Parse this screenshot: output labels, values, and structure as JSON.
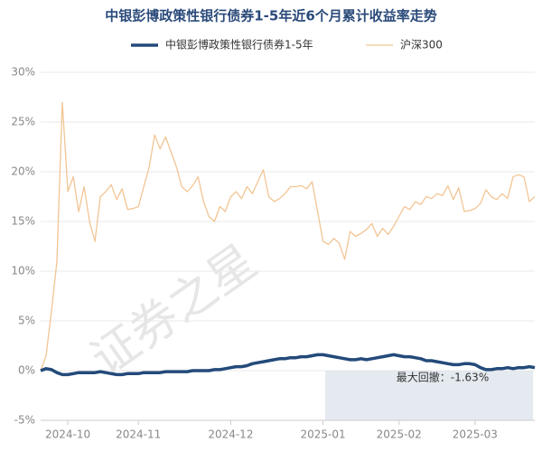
{
  "chart_data": {
    "type": "line",
    "title": "中银彭博政策性银行债券1-5年近6个月累计收益率走势",
    "watermark": "证券之星",
    "annotation": "最大回撤：-1.63%",
    "categories": [
      null,
      null,
      null,
      null,
      null,
      "2024-10",
      null,
      null,
      null,
      null,
      null,
      null,
      null,
      null,
      null,
      null,
      null,
      null,
      "2024-11",
      null,
      null,
      null,
      null,
      null,
      null,
      null,
      null,
      null,
      null,
      null,
      null,
      null,
      null,
      null,
      null,
      "2024-12",
      null,
      null,
      null,
      null,
      null,
      null,
      null,
      null,
      null,
      null,
      null,
      null,
      null,
      null,
      null,
      null,
      "2025-01",
      null,
      null,
      null,
      null,
      null,
      null,
      null,
      null,
      null,
      null,
      null,
      null,
      null,
      "2025-02",
      null,
      null,
      null,
      null,
      null,
      null,
      null,
      null,
      null,
      null,
      null,
      null,
      null,
      "2025-03",
      null,
      null,
      null,
      null,
      null,
      null,
      null,
      null,
      null,
      null,
      null
    ],
    "series": [
      {
        "name": "中银彭博政策性银行债券1-5年",
        "color": "#234a7a",
        "width": 3.5,
        "values": [
          0,
          0.2,
          0.1,
          -0.2,
          -0.4,
          -0.4,
          -0.3,
          -0.2,
          -0.2,
          -0.2,
          -0.2,
          -0.1,
          -0.2,
          -0.3,
          -0.4,
          -0.4,
          -0.3,
          -0.3,
          -0.3,
          -0.2,
          -0.2,
          -0.2,
          -0.2,
          -0.1,
          -0.1,
          -0.1,
          -0.1,
          -0.1,
          0,
          0,
          0,
          0,
          0.1,
          0.1,
          0.2,
          0.3,
          0.4,
          0.4,
          0.5,
          0.7,
          0.8,
          0.9,
          1.0,
          1.1,
          1.2,
          1.2,
          1.3,
          1.3,
          1.4,
          1.4,
          1.5,
          1.6,
          1.6,
          1.5,
          1.4,
          1.3,
          1.2,
          1.1,
          1.1,
          1.2,
          1.1,
          1.2,
          1.3,
          1.4,
          1.5,
          1.6,
          1.5,
          1.4,
          1.4,
          1.3,
          1.2,
          1.0,
          1.0,
          0.9,
          0.8,
          0.7,
          0.6,
          0.6,
          0.7,
          0.7,
          0.6,
          0.3,
          0.1,
          0.1,
          0.2,
          0.2,
          0.3,
          0.2,
          0.3,
          0.3,
          0.4,
          0.3
        ]
      },
      {
        "name": "沪深300",
        "color": "#f2c594",
        "width": 1.3,
        "values": [
          0,
          1.5,
          6,
          11,
          27,
          18,
          19.5,
          16,
          18.5,
          15,
          13,
          17.5,
          18,
          18.7,
          17.2,
          18.3,
          16.2,
          16.3,
          16.5,
          18.5,
          20.5,
          23.7,
          22.3,
          23.5,
          22,
          20.5,
          18.5,
          18,
          18.6,
          19.5,
          17,
          15.5,
          15,
          16.5,
          16,
          17.5,
          18,
          17.3,
          18.5,
          17.8,
          19,
          20.2,
          17.5,
          17,
          17.3,
          17.8,
          18.5,
          18.5,
          18.6,
          18.3,
          19,
          16,
          13,
          12.7,
          13.3,
          12.8,
          11.2,
          14,
          13.5,
          13.8,
          14.2,
          14.8,
          13.5,
          14.3,
          13.7,
          14.5,
          15.5,
          16.5,
          16.2,
          17,
          16.7,
          17.5,
          17.3,
          17.8,
          17.6,
          18.6,
          17.2,
          18.4,
          16,
          16.1,
          16.3,
          16.8,
          18.2,
          17.5,
          17.2,
          17.8,
          17.3,
          19.5,
          19.7,
          19.5,
          17,
          17.5
        ]
      }
    ],
    "ylim": [
      -5,
      30
    ],
    "yticks": [
      {
        "value": -5,
        "label": "-5%"
      },
      {
        "value": 0,
        "label": "0%"
      },
      {
        "value": 5,
        "label": "5%"
      },
      {
        "value": 10,
        "label": "10%"
      },
      {
        "value": 15,
        "label": "15%"
      },
      {
        "value": 20,
        "label": "20%"
      },
      {
        "value": 25,
        "label": "25%"
      },
      {
        "value": 30,
        "label": "30%"
      }
    ],
    "grid": true
  }
}
